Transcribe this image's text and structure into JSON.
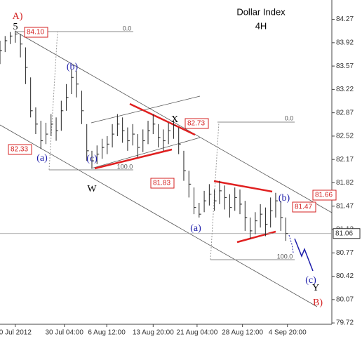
{
  "chart_data": {
    "type": "ohlc",
    "title": "Dollar Index",
    "subtitle": "4H",
    "x": [
      0,
      1,
      2,
      3,
      4,
      5,
      6,
      7,
      8,
      9,
      10,
      11,
      12,
      13,
      14,
      15,
      16,
      17,
      18,
      19,
      20,
      21,
      22,
      23,
      24,
      25,
      26,
      27,
      28,
      29,
      30,
      31,
      32,
      33,
      34,
      35,
      36,
      37,
      38,
      39,
      40,
      41,
      42,
      43,
      44,
      45,
      46,
      47,
      48,
      49,
      50,
      51,
      52,
      53,
      54,
      55,
      56
    ],
    "series": [
      {
        "name": "high",
        "values": [
          83.95,
          84.02,
          84.08,
          84.1,
          84.05,
          83.85,
          83.4,
          82.95,
          82.75,
          82.72,
          82.85,
          82.8,
          83.05,
          83.3,
          83.52,
          83.5,
          83.2,
          82.7,
          82.3,
          82.38,
          82.48,
          82.52,
          82.7,
          82.85,
          82.8,
          82.65,
          82.7,
          82.55,
          82.62,
          82.75,
          82.85,
          82.7,
          82.62,
          82.72,
          82.75,
          82.65,
          82.3,
          82.0,
          81.75,
          81.52,
          81.7,
          81.8,
          81.72,
          81.85,
          81.78,
          81.65,
          81.75,
          81.72,
          81.55,
          81.3,
          81.38,
          81.5,
          81.45,
          81.6,
          81.67,
          81.55,
          81.3
        ]
      },
      {
        "name": "low",
        "values": [
          83.6,
          83.78,
          83.9,
          83.92,
          83.7,
          83.3,
          82.8,
          82.55,
          82.33,
          82.4,
          82.52,
          82.45,
          82.6,
          82.9,
          83.15,
          83.1,
          82.7,
          82.15,
          82.04,
          82.1,
          82.18,
          82.25,
          82.35,
          82.52,
          82.42,
          82.3,
          82.38,
          82.2,
          82.28,
          82.4,
          82.55,
          82.35,
          82.3,
          82.4,
          82.48,
          82.25,
          81.85,
          81.6,
          81.35,
          81.3,
          81.38,
          81.48,
          81.4,
          81.5,
          81.42,
          81.3,
          81.4,
          81.35,
          81.1,
          80.98,
          81.05,
          81.15,
          81.02,
          81.15,
          81.3,
          81.1,
          80.95
        ]
      },
      {
        "name": "close",
        "values": [
          83.8,
          83.95,
          84.02,
          84.05,
          83.9,
          83.55,
          82.9,
          82.7,
          82.45,
          82.55,
          82.7,
          82.6,
          82.9,
          83.1,
          83.4,
          83.3,
          82.9,
          82.3,
          82.15,
          82.25,
          82.35,
          82.4,
          82.55,
          82.7,
          82.6,
          82.45,
          82.55,
          82.35,
          82.45,
          82.6,
          82.7,
          82.5,
          82.45,
          82.6,
          82.68,
          82.4,
          82.0,
          81.8,
          81.45,
          81.35,
          81.55,
          81.65,
          81.55,
          81.7,
          81.6,
          81.45,
          81.6,
          81.5,
          81.3,
          81.1,
          81.25,
          81.35,
          81.2,
          81.4,
          81.55,
          81.3,
          81.06
        ]
      }
    ],
    "xlim": [
      0,
      65
    ],
    "xticks": [
      {
        "value": 3,
        "label": "0 Jul 2012"
      },
      {
        "value": 12.6,
        "label": "30 Jul 04:00"
      },
      {
        "value": 20.9,
        "label": "6 Aug 12:00"
      },
      {
        "value": 30,
        "label": "13 Aug 20:00"
      },
      {
        "value": 38.6,
        "label": "21 Aug 04:00"
      },
      {
        "value": 47.5,
        "label": "28 Aug 12:00"
      },
      {
        "value": 56.3,
        "label": "4 Sep 20:00"
      }
    ],
    "ylim": [
      79.7,
      84.56
    ],
    "yticks": [
      84.27,
      83.92,
      83.57,
      83.22,
      82.87,
      82.52,
      82.17,
      81.82,
      81.47,
      81.12,
      80.77,
      80.42,
      80.07,
      79.72
    ],
    "last_price": 81.06,
    "annotations": [
      {
        "text": "A)",
        "color": "#d42020"
      },
      {
        "text": "5",
        "color": "#000000"
      },
      {
        "text": "(a)",
        "color": "#1c1caa"
      },
      {
        "text": "(b)",
        "color": "#1c1caa"
      },
      {
        "text": "(c)",
        "color": "#1c1caa"
      },
      {
        "text": "W",
        "color": "#000000"
      },
      {
        "text": "X",
        "color": "#000000"
      },
      {
        "text": "(a)",
        "color": "#1c1caa"
      },
      {
        "text": "(b)",
        "color": "#1c1caa"
      },
      {
        "text": "(c)",
        "color": "#1c1caa"
      },
      {
        "text": "Y",
        "color": "#000000"
      },
      {
        "text": "B)",
        "color": "#d42020"
      }
    ],
    "price_tags": [
      "84.10",
      "82.33",
      "82.73",
      "81.83",
      "81.47",
      "81.66"
    ],
    "fib_levels": [
      "0.0",
      "100.0",
      "0.0",
      "100.0"
    ]
  }
}
